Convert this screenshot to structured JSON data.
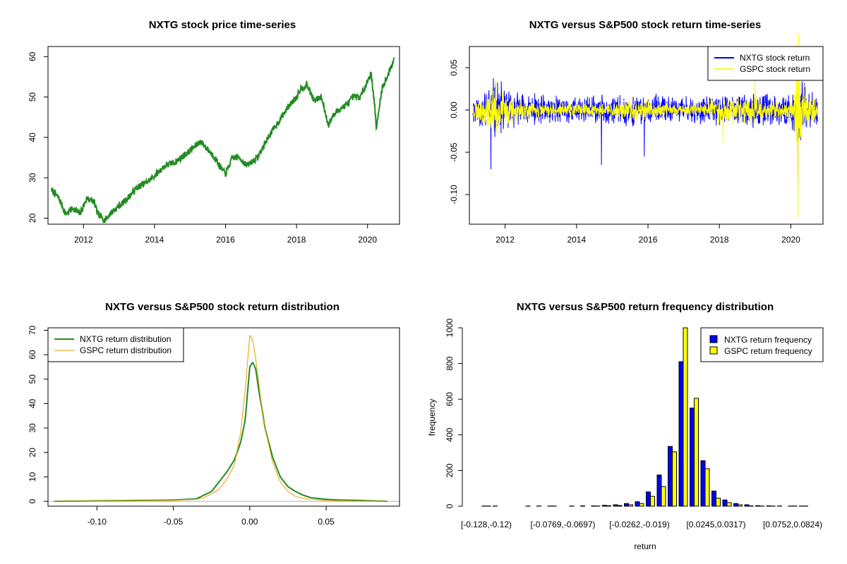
{
  "chart_data": [
    {
      "type": "line",
      "title": "NXTG stock price time-series",
      "xlabel": "",
      "ylabel": "",
      "xlim": [
        2011.0,
        2020.9
      ],
      "ylim": [
        18.5,
        62.5
      ],
      "x_ticks": [
        "2012",
        "2014",
        "2016",
        "2018",
        "2020"
      ],
      "x_tick_values": [
        2012,
        2014,
        2016,
        2018,
        2020
      ],
      "y_ticks": [
        "20",
        "30",
        "40",
        "50",
        "60"
      ],
      "y_tick_values": [
        20,
        30,
        40,
        50,
        60
      ],
      "series": [
        {
          "color": "#228B22",
          "x": [
            2011.1,
            2011.3,
            2011.5,
            2011.7,
            2011.9,
            2012.1,
            2012.3,
            2012.4,
            2012.6,
            2012.8,
            2013.0,
            2013.2,
            2013.5,
            2013.8,
            2014.0,
            2014.3,
            2014.6,
            2014.9,
            2015.1,
            2015.3,
            2015.5,
            2015.7,
            2015.9,
            2016.0,
            2016.2,
            2016.4,
            2016.6,
            2016.9,
            2017.2,
            2017.5,
            2017.8,
            2018.0,
            2018.1,
            2018.3,
            2018.5,
            2018.7,
            2018.9,
            2019.0,
            2019.2,
            2019.4,
            2019.6,
            2019.8,
            2020.0,
            2020.1,
            2020.2,
            2020.25,
            2020.4,
            2020.6,
            2020.75
          ],
          "y": [
            27,
            25,
            21,
            22.5,
            21,
            25,
            24,
            21,
            19.5,
            21.5,
            23,
            24.5,
            27.5,
            29,
            30.5,
            33,
            34,
            36,
            37.5,
            39,
            37,
            35,
            32,
            31,
            35,
            35,
            33,
            35,
            40,
            44,
            48,
            50,
            52,
            53,
            49,
            50,
            43,
            45,
            47,
            48,
            50,
            50,
            54,
            56,
            48,
            42,
            52,
            56,
            59.5
          ]
        }
      ]
    },
    {
      "type": "line",
      "title": "NXTG versus S&P500 stock return time-series",
      "xlabel": "",
      "ylabel": "",
      "xlim": [
        2011.0,
        2020.9
      ],
      "ylim": [
        -0.135,
        0.075
      ],
      "x_ticks": [
        "2012",
        "2014",
        "2016",
        "2018",
        "2020"
      ],
      "x_tick_values": [
        2012,
        2014,
        2016,
        2018,
        2020
      ],
      "y_ticks": [
        "-0.10",
        "-0.05",
        "0.00",
        "0.05"
      ],
      "y_tick_values": [
        -0.1,
        -0.05,
        0.0,
        0.05
      ],
      "legend": {
        "placement": "top-right",
        "entries": [
          "NXTG stock return",
          "GSPC stock return"
        ]
      },
      "series": [
        {
          "name": "NXTG stock return",
          "color": "#0000FF",
          "envelope_x": [
            2011.1,
            2011.5,
            2011.7,
            2012.0,
            2012.5,
            2013.0,
            2014.0,
            2015.0,
            2016.0,
            2017.0,
            2018.0,
            2019.0,
            2019.8,
            2020.1,
            2020.2,
            2020.3,
            2020.5,
            2020.75
          ],
          "envelope_amplitude": [
            0.02,
            0.03,
            0.045,
            0.03,
            0.022,
            0.02,
            0.018,
            0.02,
            0.02,
            0.018,
            0.02,
            0.022,
            0.02,
            0.03,
            0.06,
            0.04,
            0.025,
            0.02
          ],
          "spikes": [
            [
              2011.6,
              0.065
            ],
            [
              2011.6,
              -0.07
            ],
            [
              2014.7,
              -0.065
            ],
            [
              2015.9,
              -0.055
            ],
            [
              2020.2,
              -0.1
            ]
          ]
        },
        {
          "name": "GSPC stock return",
          "color": "#FFFF00",
          "envelope_x": [
            2011.1,
            2011.5,
            2011.7,
            2012.0,
            2012.5,
            2013.0,
            2014.0,
            2015.0,
            2016.0,
            2017.0,
            2018.0,
            2019.0,
            2019.8,
            2020.1,
            2020.2,
            2020.3,
            2020.5,
            2020.75
          ],
          "envelope_amplitude": [
            0.012,
            0.02,
            0.04,
            0.02,
            0.014,
            0.01,
            0.008,
            0.012,
            0.014,
            0.006,
            0.018,
            0.02,
            0.01,
            0.025,
            0.09,
            0.05,
            0.02,
            0.015
          ],
          "spikes": [
            [
              2020.2,
              -0.128
            ],
            [
              2020.22,
              0.09
            ],
            [
              2019.0,
              0.05
            ],
            [
              2018.1,
              -0.04
            ]
          ]
        }
      ]
    },
    {
      "type": "line",
      "title": "NXTG versus S&P500 stock return distribution",
      "xlabel": "",
      "ylabel": "",
      "xlim": [
        -0.132,
        0.098
      ],
      "ylim": [
        -2,
        71
      ],
      "x_ticks": [
        "-0.10",
        "-0.05",
        "0.00",
        "0.05"
      ],
      "x_tick_values": [
        -0.1,
        -0.05,
        0.0,
        0.05
      ],
      "y_ticks": [
        "0",
        "10",
        "20",
        "30",
        "40",
        "50",
        "60",
        "70"
      ],
      "y_tick_values": [
        0,
        10,
        20,
        30,
        40,
        50,
        60,
        70
      ],
      "legend": {
        "placement": "top-left",
        "entries": [
          "NXTG return distribution",
          "GSPC return distribution"
        ]
      },
      "series": [
        {
          "name": "NXTG return distribution",
          "color": "#228B22",
          "x": [
            -0.128,
            -0.08,
            -0.05,
            -0.035,
            -0.03,
            -0.025,
            -0.02,
            -0.015,
            -0.01,
            -0.006,
            -0.003,
            0.0,
            0.002,
            0.004,
            0.006,
            0.008,
            0.01,
            0.015,
            0.02,
            0.025,
            0.03,
            0.035,
            0.04,
            0.05,
            0.06,
            0.07,
            0.09
          ],
          "y": [
            0,
            0.3,
            0.5,
            1,
            2.5,
            4,
            8,
            12,
            17,
            24,
            33,
            55,
            57,
            54,
            45,
            38,
            30,
            18,
            10,
            6,
            4,
            2.5,
            1.5,
            0.8,
            0.5,
            0.4,
            0
          ]
        },
        {
          "name": "GSPC return distribution",
          "color": "#E69F00",
          "x": [
            -0.128,
            -0.08,
            -0.05,
            -0.035,
            -0.03,
            -0.025,
            -0.02,
            -0.015,
            -0.01,
            -0.006,
            -0.003,
            0.0,
            0.002,
            0.004,
            0.006,
            0.008,
            0.01,
            0.015,
            0.02,
            0.025,
            0.03,
            0.035,
            0.04,
            0.05,
            0.06,
            0.07,
            0.09
          ],
          "y": [
            0,
            0.2,
            0.4,
            0.8,
            1.5,
            3,
            5,
            9,
            15,
            28,
            45,
            68,
            66,
            58,
            48,
            38,
            30,
            16,
            8,
            4,
            2,
            1.2,
            0.8,
            0.4,
            0.2,
            0.1,
            0
          ]
        }
      ]
    },
    {
      "type": "bar",
      "title": "NXTG versus S&P500 return frequency distribution",
      "xlabel": "return",
      "ylabel": "frequency",
      "ylim": [
        0,
        1000
      ],
      "y_ticks": [
        "0",
        "200",
        "400",
        "600",
        "800",
        "1000"
      ],
      "y_tick_values": [
        0,
        200,
        400,
        600,
        800,
        1000
      ],
      "x_tick_labels": [
        "[-0.128,-0.12)",
        "[-0.0769,-0.0697)",
        "[-0.0262,-0.019)",
        "[0.0245,0.0317)",
        "[0.0752,0.0824)"
      ],
      "x_tick_label_indices": [
        0,
        7,
        14,
        21,
        28
      ],
      "legend": {
        "placement": "top-right",
        "entries": [
          "NXTG return frequency",
          "GSPC return frequency"
        ]
      },
      "series": [
        {
          "name": "NXTG return frequency",
          "color": "#0000FF",
          "values": [
            1,
            1,
            0,
            0,
            1,
            1,
            1,
            0,
            1,
            2,
            2,
            5,
            8,
            15,
            25,
            80,
            175,
            335,
            810,
            550,
            255,
            85,
            35,
            15,
            8,
            3,
            2,
            1,
            1,
            1
          ]
        },
        {
          "name": "GSPC return frequency",
          "color": "#FFFF00",
          "values": [
            1,
            0,
            0,
            0,
            0,
            0,
            1,
            0,
            0,
            0,
            1,
            3,
            4,
            8,
            15,
            55,
            110,
            305,
            1000,
            605,
            210,
            45,
            20,
            8,
            2,
            1,
            1,
            0,
            1,
            1
          ]
        }
      ]
    }
  ]
}
